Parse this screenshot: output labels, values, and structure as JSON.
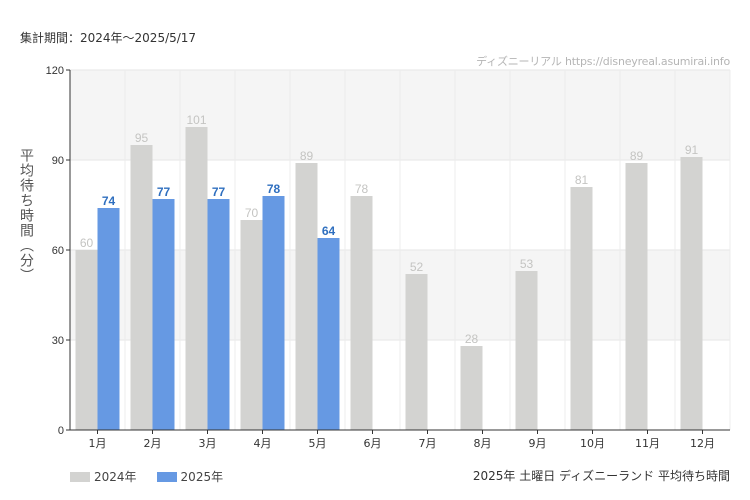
{
  "header": {
    "period_text": "集計期間：2024年～2025/5/17",
    "watermark": "ディズニーリアル https://disneyreal.asumirai.info"
  },
  "footer": {
    "title": "2025年 土曜日 ディズニーランド 平均待ち時間"
  },
  "chart_data": {
    "type": "bar",
    "ylabel": "平均待ち時間（分）",
    "xlabel": "",
    "ylim": [
      0,
      120
    ],
    "yticks": [
      0,
      30,
      60,
      90,
      120
    ],
    "grid": true,
    "legend_position": "bottom-left",
    "categories": [
      "1月",
      "2月",
      "3月",
      "4月",
      "5月",
      "6月",
      "7月",
      "8月",
      "9月",
      "10月",
      "11月",
      "12月"
    ],
    "series": [
      {
        "name": "2024年",
        "color": "#d3d3d1",
        "label_color": "#c4c4c2",
        "values": [
          60,
          95,
          101,
          70,
          89,
          78,
          52,
          28,
          53,
          81,
          89,
          91
        ]
      },
      {
        "name": "2025年",
        "color": "#6699e3",
        "label_color": "#2f6fbf",
        "values": [
          74,
          77,
          77,
          78,
          64,
          null,
          null,
          null,
          null,
          null,
          null,
          null
        ]
      }
    ]
  }
}
